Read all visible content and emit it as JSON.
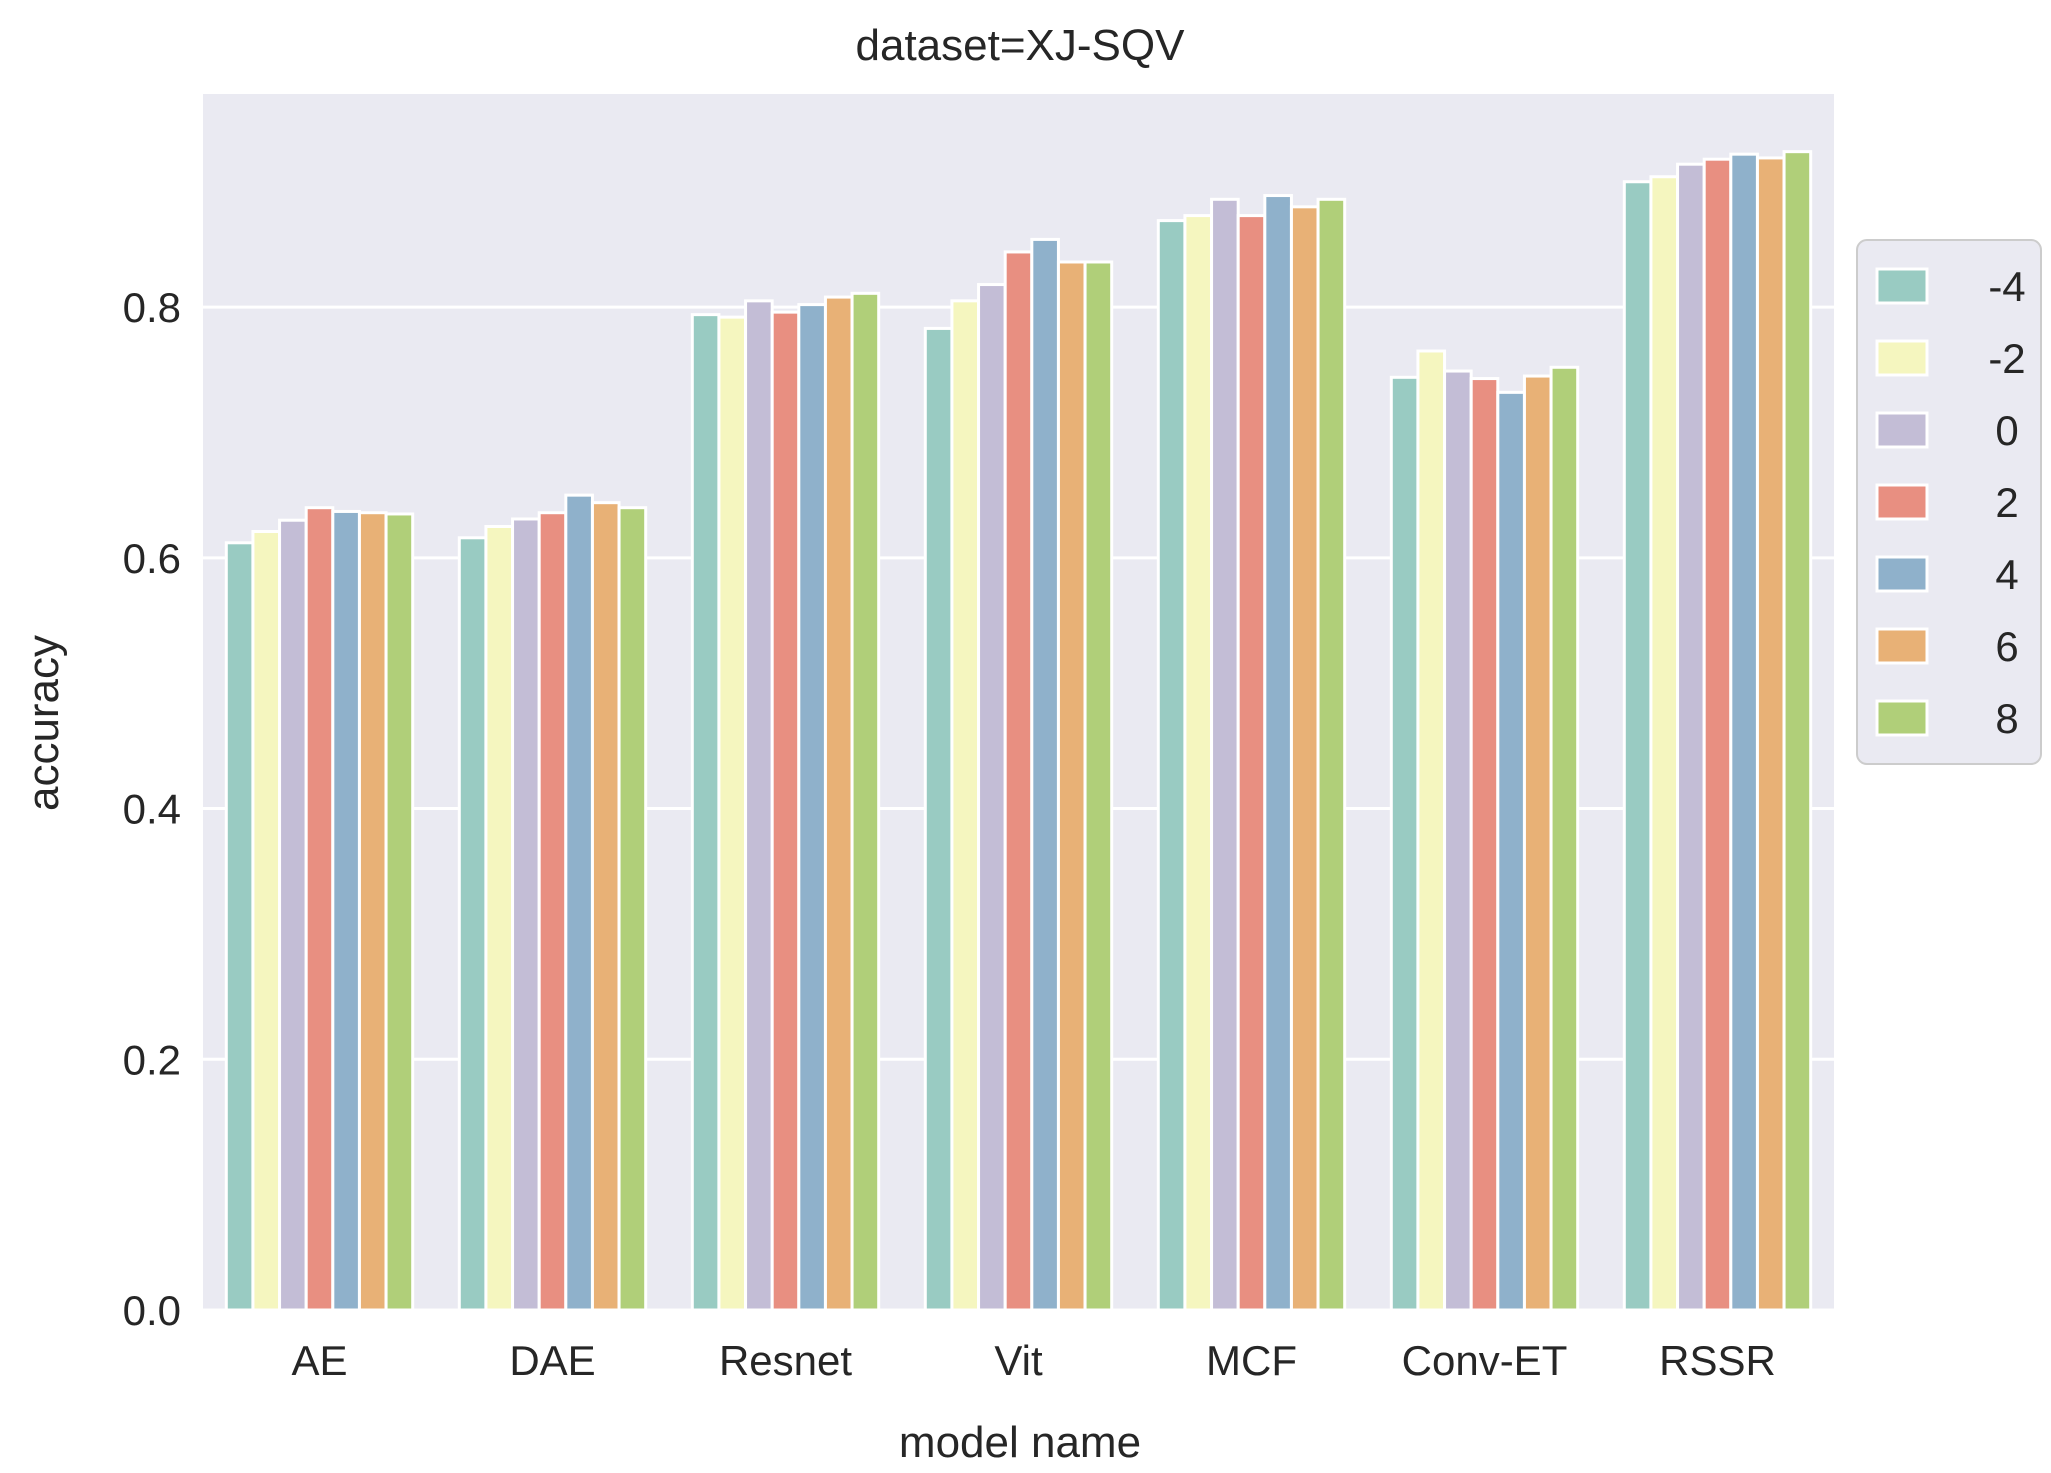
{
  "chart_data": {
    "type": "bar",
    "title": "dataset=XJ-SQV",
    "xlabel": "model name",
    "ylabel": "accuracy",
    "ylim": [
      0,
      0.97
    ],
    "yticks": [
      0.0,
      0.2,
      0.4,
      0.6,
      0.8
    ],
    "ytick_labels": [
      "0.0",
      "0.2",
      "0.4",
      "0.6",
      "0.8"
    ],
    "grid": true,
    "legend_position": "right",
    "background": "#eaeaf2",
    "categories": [
      "AE",
      "DAE",
      "Resnet",
      "Vit",
      "MCF",
      "Conv-ET",
      "RSSR"
    ],
    "series": [
      {
        "name": "-4",
        "color": "#99cbc2",
        "values": [
          0.612,
          0.616,
          0.794,
          0.783,
          0.869,
          0.744,
          0.9
        ]
      },
      {
        "name": "-2",
        "color": "#f5f6bf",
        "values": [
          0.621,
          0.625,
          0.792,
          0.805,
          0.873,
          0.765,
          0.904
        ]
      },
      {
        "name": "0",
        "color": "#c3bdd6",
        "values": [
          0.63,
          0.631,
          0.805,
          0.818,
          0.886,
          0.749,
          0.914
        ]
      },
      {
        "name": "2",
        "color": "#e88f81",
        "values": [
          0.64,
          0.636,
          0.796,
          0.844,
          0.873,
          0.743,
          0.918
        ]
      },
      {
        "name": "4",
        "color": "#8fb1cb",
        "values": [
          0.637,
          0.65,
          0.802,
          0.854,
          0.889,
          0.732,
          0.922
        ]
      },
      {
        "name": "6",
        "color": "#e8b176",
        "values": [
          0.636,
          0.644,
          0.808,
          0.836,
          0.88,
          0.745,
          0.919
        ]
      },
      {
        "name": "8",
        "color": "#b0cf79",
        "values": [
          0.635,
          0.64,
          0.811,
          0.836,
          0.886,
          0.752,
          0.924
        ]
      }
    ]
  }
}
